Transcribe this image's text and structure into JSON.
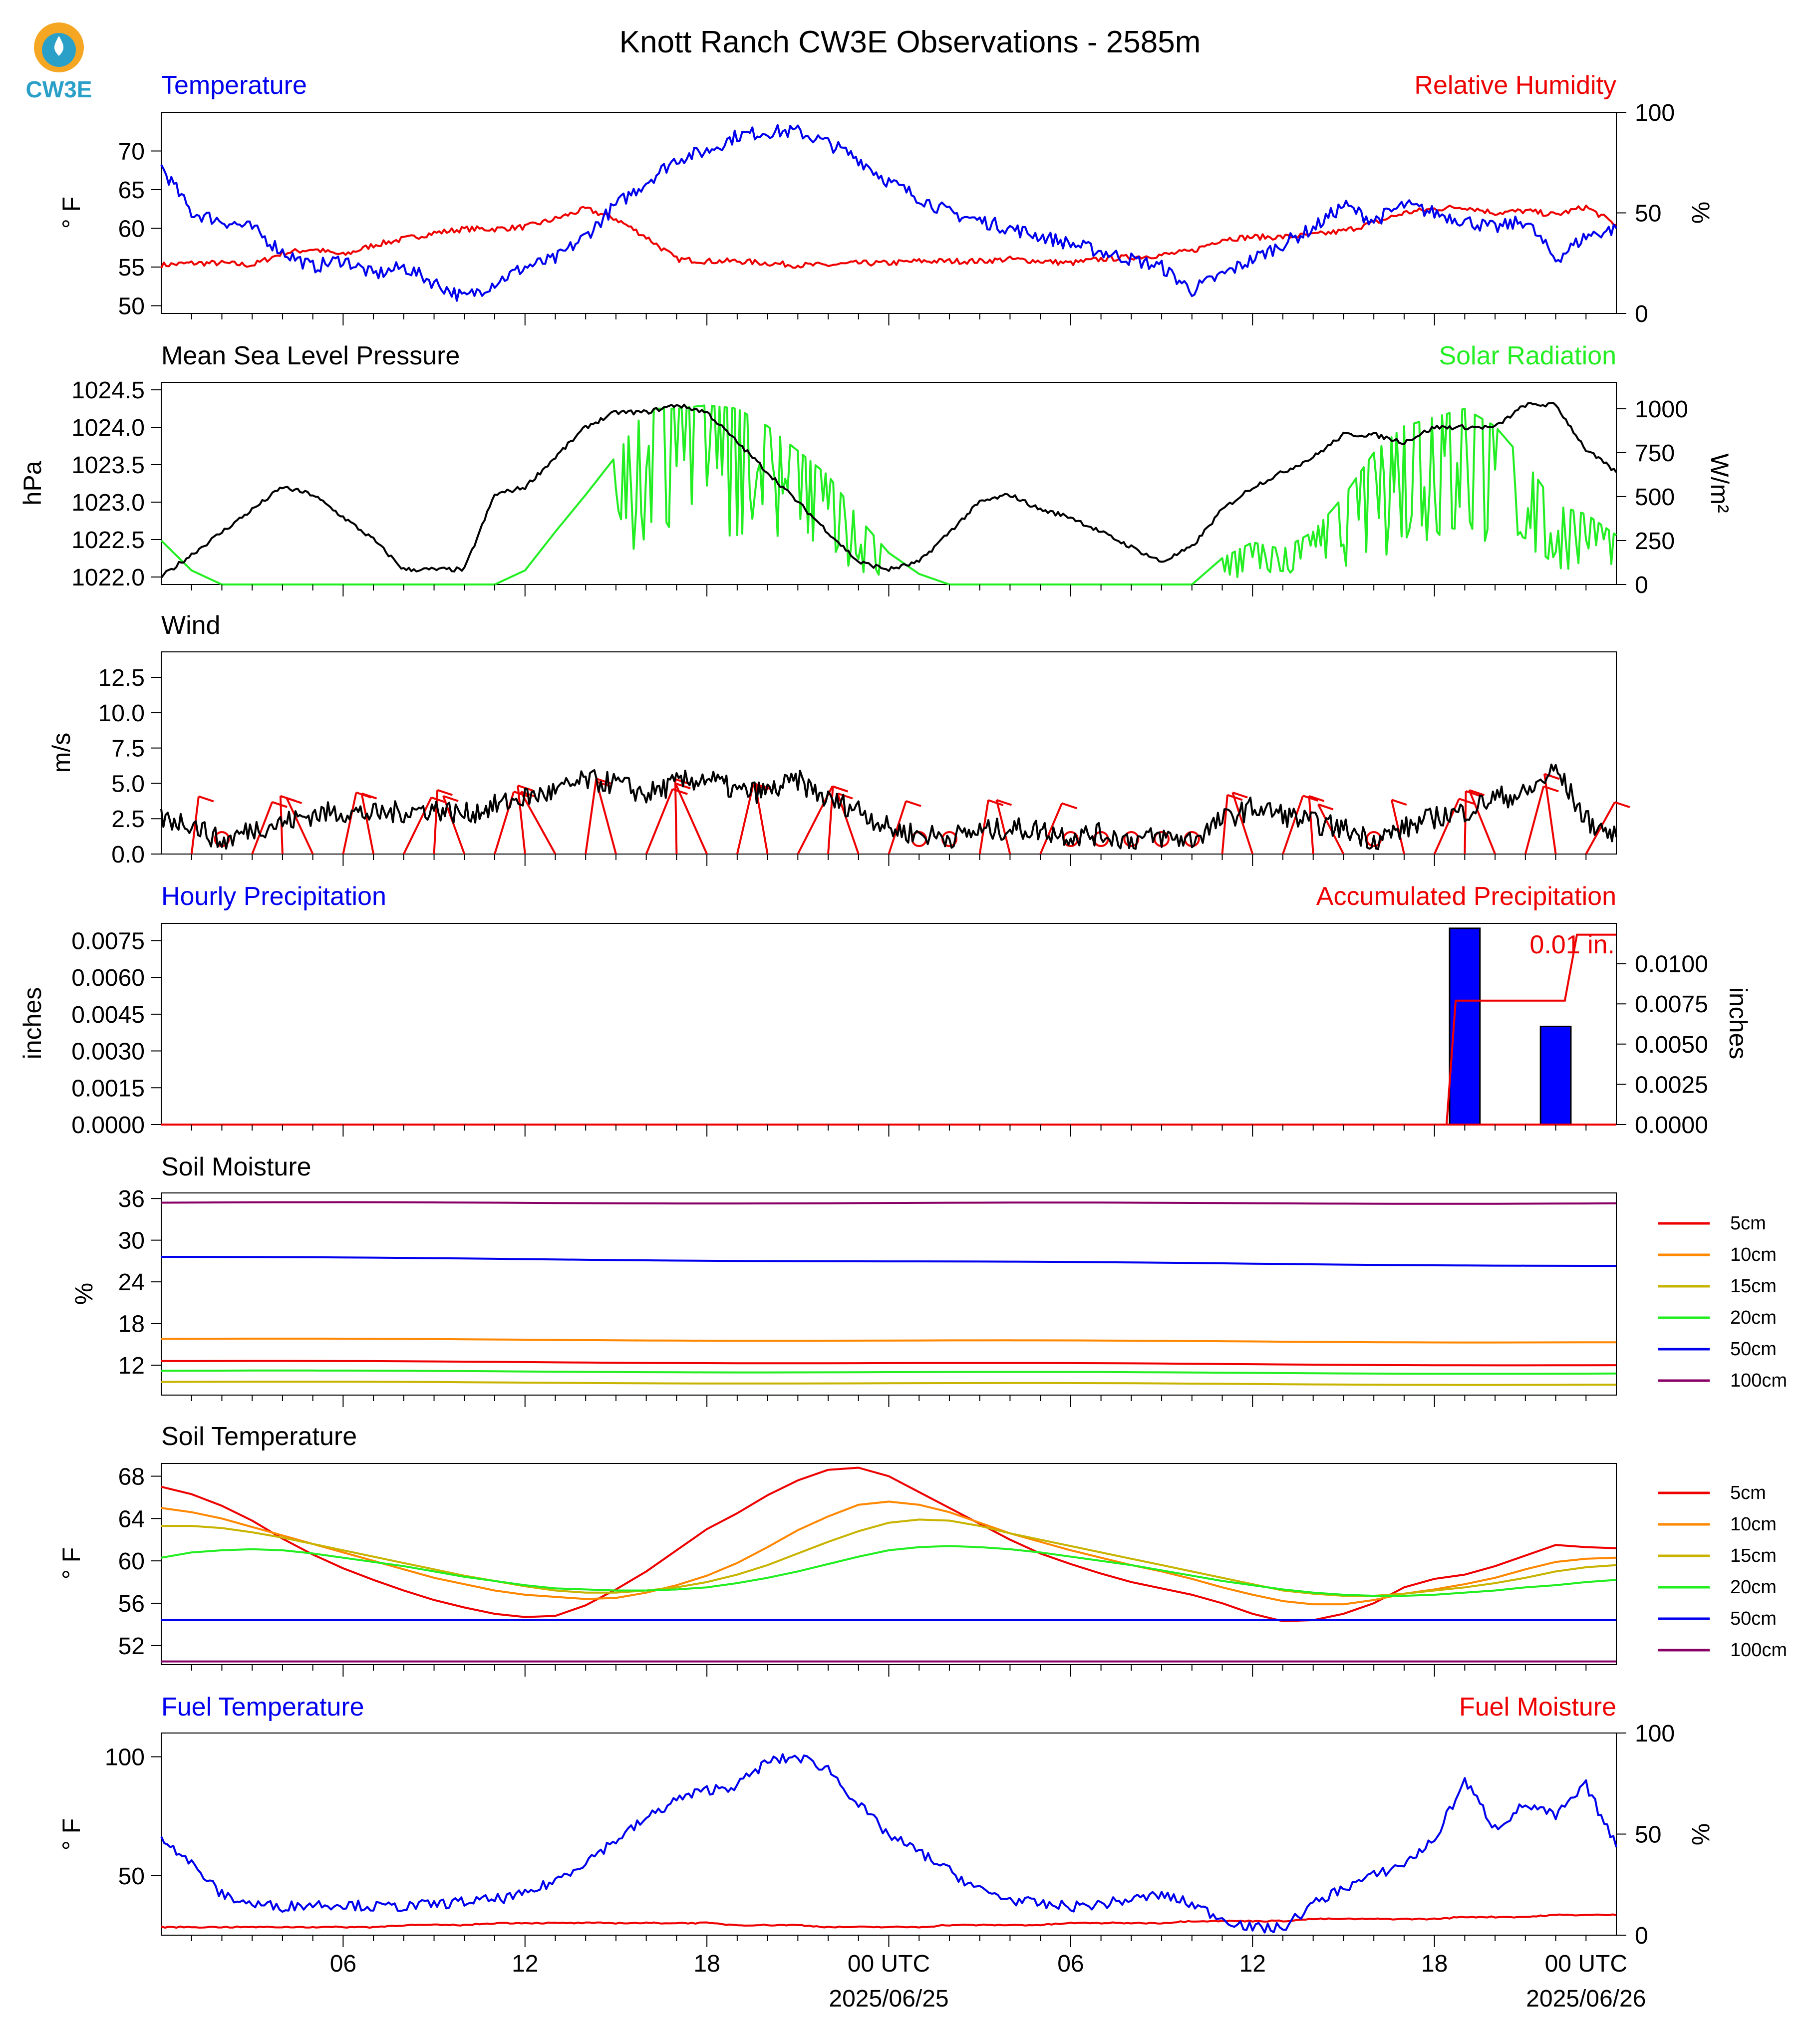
{
  "title": "Knott Ranch CW3E Observations - 2585m",
  "logo_text": "CW3E",
  "colors": {
    "blue": "#0000ee",
    "red": "#ee0000",
    "green": "#22ee22",
    "black": "#000000",
    "orange": "#ff8800",
    "olive": "#c8b400",
    "purple": "#880066",
    "fill_blue": "#0000ff"
  },
  "x_axis": {
    "ticks": [
      "06",
      "12",
      "18",
      "00 UTC",
      "06",
      "12",
      "18",
      "00 UTC"
    ],
    "dates": [
      "2025/06/25",
      "2025/06/26"
    ]
  },
  "panels": {
    "temperature": {
      "left_title": "Temperature",
      "right_title": "Relative Humidity",
      "ylabel_left": "° F",
      "ylabel_right": "%",
      "yticks_left": [
        "50",
        "55",
        "60",
        "65",
        "70"
      ],
      "yticks_right": [
        "0",
        "50",
        "100"
      ]
    },
    "pressure": {
      "left_title": "Mean Sea Level Pressure",
      "right_title": "Solar Radiation",
      "ylabel_left": "hPa",
      "ylabel_right": "W/m²",
      "yticks_left": [
        "1022.0",
        "1022.5",
        "1023.0",
        "1023.5",
        "1024.0",
        "1024.5"
      ],
      "yticks_right": [
        "0",
        "250",
        "500",
        "750",
        "1000"
      ]
    },
    "wind": {
      "left_title": "Wind",
      "ylabel_left": "m/s",
      "yticks_left": [
        "0.0",
        "2.5",
        "5.0",
        "7.5",
        "10.0",
        "12.5"
      ]
    },
    "precip": {
      "left_title": "Hourly Precipitation",
      "right_title": "Accumulated Precipitation",
      "ylabel_left": "inches",
      "ylabel_right": "inches",
      "yticks_left": [
        "0.0000",
        "0.0015",
        "0.0030",
        "0.0045",
        "0.0060",
        "0.0075"
      ],
      "yticks_right": [
        "0.0000",
        "0.0025",
        "0.0050",
        "0.0075",
        "0.0100"
      ],
      "annotation": "0.01 in."
    },
    "soil_moisture": {
      "left_title": "Soil Moisture",
      "ylabel_left": "%",
      "yticks_left": [
        "12",
        "18",
        "24",
        "30",
        "36"
      ],
      "legend": [
        "5cm",
        "10cm",
        "15cm",
        "20cm",
        "50cm",
        "100cm"
      ]
    },
    "soil_temp": {
      "left_title": "Soil Temperature",
      "ylabel_left": "° F",
      "yticks_left": [
        "52",
        "56",
        "60",
        "64",
        "68"
      ],
      "legend": [
        "5cm",
        "10cm",
        "15cm",
        "20cm",
        "50cm",
        "100cm"
      ]
    },
    "fuel": {
      "left_title": "Fuel Temperature",
      "right_title": "Fuel Moisture",
      "ylabel_left": "° F",
      "ylabel_right": "%",
      "yticks_left": [
        "50",
        "100"
      ],
      "yticks_right": [
        "0",
        "50",
        "100"
      ]
    }
  },
  "chart_data": [
    {
      "type": "line",
      "title": "Temperature",
      "x_hours": [
        0,
        1,
        2,
        3,
        4,
        5,
        6,
        7,
        8,
        9,
        10,
        11,
        12,
        13,
        14,
        15,
        16,
        17,
        18,
        19,
        20,
        21,
        22,
        23,
        24,
        25,
        26,
        27,
        28,
        29,
        30,
        31,
        32,
        33,
        34,
        35,
        36,
        37,
        38,
        39,
        40,
        41,
        42,
        43,
        44,
        45,
        46,
        47,
        48
      ],
      "ylim": [
        49,
        75
      ],
      "right_ylim": [
        0,
        100
      ],
      "series": [
        {
          "name": "Temperature",
          "axis": "left",
          "values": [
            68,
            62,
            61,
            60,
            57,
            55,
            56,
            54,
            55,
            53,
            51,
            53,
            55,
            56,
            59,
            63,
            66,
            69,
            70,
            72,
            72.5,
            72.5,
            71,
            69,
            66,
            64,
            62,
            61,
            60,
            59,
            58,
            57,
            56,
            55,
            52,
            54,
            56,
            58,
            60,
            63,
            61,
            63,
            62,
            61,
            60,
            61,
            56,
            59,
            60
          ]
        },
        {
          "name": "Relative Humidity",
          "axis": "right",
          "values": [
            24,
            25,
            25,
            24,
            30,
            32,
            29,
            34,
            37,
            40,
            42,
            42,
            43,
            47,
            52,
            47,
            38,
            27,
            26,
            26,
            25,
            24,
            24,
            25,
            25,
            26,
            26,
            26,
            27,
            26,
            25,
            27,
            28,
            29,
            31,
            37,
            38,
            38,
            39,
            41,
            45,
            50,
            52,
            53,
            50,
            51,
            49,
            53,
            44
          ]
        }
      ]
    },
    {
      "type": "line",
      "title": "Mean Sea Level Pressure",
      "ylim": [
        1021.9,
        1024.6
      ],
      "right_ylim": [
        0,
        1150
      ],
      "series": [
        {
          "name": "Mean Sea Level Pressure",
          "axis": "left",
          "values": [
            1022.0,
            1022.3,
            1022.6,
            1022.9,
            1023.2,
            1023.1,
            1022.8,
            1022.5,
            1022.1,
            1022.1,
            1022.1,
            1023.1,
            1023.2,
            1023.6,
            1024.0,
            1024.2,
            1024.2,
            1024.3,
            1024.2,
            1023.8,
            1023.4,
            1023.0,
            1022.6,
            1022.2,
            1022.1,
            1022.2,
            1022.6,
            1023.0,
            1023.1,
            1022.9,
            1022.8,
            1022.6,
            1022.4,
            1022.2,
            1022.4,
            1022.9,
            1023.2,
            1023.4,
            1023.6,
            1023.9,
            1023.9,
            1023.8,
            1024.0,
            1024.0,
            1024.0,
            1024.3,
            1024.3,
            1023.7,
            1023.4
          ]
        },
        {
          "name": "Solar Radiation",
          "axis": "right",
          "values": [
            250,
            80,
            0,
            0,
            0,
            0,
            0,
            0,
            0,
            0,
            0,
            0,
            80,
            300,
            510,
            730,
            1000,
            1000,
            1020,
            1000,
            900,
            760,
            620,
            380,
            180,
            60,
            0,
            0,
            0,
            0,
            0,
            0,
            0,
            0,
            0,
            150,
            240,
            200,
            300,
            500,
            750,
            900,
            950,
            1000,
            900,
            700,
            450,
            400,
            280
          ]
        }
      ]
    },
    {
      "type": "line",
      "title": "Wind",
      "ylim": [
        0,
        14.3
      ],
      "series": [
        {
          "name": "Wind",
          "values": [
            2.5,
            2.2,
            0.8,
            1.8,
            2.2,
            2.8,
            3.0,
            2.8,
            3.0,
            3.2,
            2.8,
            3.4,
            4.0,
            4.4,
            5.2,
            5.0,
            4.2,
            5.0,
            5.4,
            4.4,
            4.4,
            5.2,
            3.8,
            3.2,
            1.8,
            1.4,
            1.2,
            1.6,
            1.8,
            1.7,
            1.3,
            1.4,
            1.0,
            1.2,
            1.0,
            2.4,
            3.3,
            2.8,
            2.2,
            1.8,
            1.0,
            1.8,
            2.6,
            3.0,
            4.0,
            4.2,
            6.0,
            2.4,
            1.2
          ]
        }
      ]
    },
    {
      "type": "bar",
      "title": "Hourly Precipitation",
      "ylim": [
        0,
        0.0082
      ],
      "right_ylim": [
        0,
        0.0125
      ],
      "series": [
        {
          "name": "Hourly Precipitation",
          "axis": "left",
          "bars": [
            {
              "hour": 43,
              "value": 0.008
            },
            {
              "hour": 46,
              "value": 0.004
            }
          ]
        },
        {
          "name": "Accumulated Precipitation",
          "axis": "right",
          "steps": [
            [
              0,
              0
            ],
            [
              42.4,
              0
            ],
            [
              42.7,
              0.0077
            ],
            [
              46.3,
              0.0077
            ],
            [
              46.7,
              0.0118
            ],
            [
              48,
              0.0118
            ]
          ]
        }
      ]
    },
    {
      "type": "line",
      "title": "Soil Moisture",
      "ylim": [
        7.7,
        36.8
      ],
      "series": [
        {
          "name": "5cm",
          "values_start_end": [
            12.6,
            12.0
          ]
        },
        {
          "name": "10cm",
          "values_start_end": [
            15.8,
            15.3
          ]
        },
        {
          "name": "15cm",
          "values_start_end": [
            9.6,
            9.2
          ]
        },
        {
          "name": "20cm",
          "values_start_end": [
            11.2,
            10.8
          ]
        },
        {
          "name": "50cm",
          "values_start_end": [
            27.6,
            26.3
          ]
        },
        {
          "name": "100cm",
          "values_start_end": [
            35.4,
            35.3
          ]
        }
      ]
    },
    {
      "type": "line",
      "title": "Soil Temperature",
      "ylim": [
        50.2,
        69.2
      ],
      "series": [
        {
          "name": "5cm",
          "values": [
            67.0,
            66.3,
            65.2,
            63.8,
            62.1,
            60.6,
            59.3,
            58.2,
            57.2,
            56.3,
            55.6,
            55.0,
            54.7,
            54.8,
            55.8,
            57.3,
            59.0,
            61.0,
            63.0,
            64.5,
            66.2,
            67.6,
            68.6,
            68.8,
            68.0,
            66.5,
            65.0,
            63.5,
            62.0,
            60.7,
            59.7,
            58.8,
            58.0,
            57.4,
            56.8,
            56.0,
            55.0,
            54.3,
            54.4,
            55.0,
            56.0,
            57.5,
            58.3,
            58.7,
            59.5,
            60.5,
            61.5,
            61.3,
            61.2
          ]
        },
        {
          "name": "10cm",
          "values": [
            65.0,
            64.6,
            64.0,
            63.2,
            62.4,
            61.6,
            60.8,
            60.0,
            59.2,
            58.4,
            57.8,
            57.2,
            56.8,
            56.6,
            56.4,
            56.5,
            57.0,
            57.7,
            58.6,
            59.8,
            61.3,
            62.9,
            64.2,
            65.3,
            65.6,
            65.3,
            64.6,
            63.6,
            62.6,
            61.8,
            61.0,
            60.3,
            59.6,
            59.0,
            58.3,
            57.5,
            56.8,
            56.2,
            55.9,
            55.9,
            56.3,
            56.9,
            57.3,
            57.8,
            58.4,
            59.2,
            59.9,
            60.2,
            60.3
          ]
        },
        {
          "name": "15cm",
          "values": [
            63.3,
            63.3,
            63.1,
            62.7,
            62.2,
            61.6,
            61.0,
            60.4,
            59.8,
            59.2,
            58.6,
            58.1,
            57.6,
            57.2,
            57.0,
            57.0,
            57.2,
            57.5,
            58.0,
            58.7,
            59.6,
            60.7,
            61.8,
            62.8,
            63.6,
            63.9,
            63.8,
            63.3,
            62.6,
            62.0,
            61.4,
            60.8,
            60.2,
            59.6,
            59.0,
            58.4,
            57.8,
            57.2,
            56.9,
            56.7,
            56.7,
            56.9,
            57.2,
            57.5,
            57.9,
            58.4,
            59.0,
            59.4,
            59.6
          ]
        },
        {
          "name": "20cm",
          "values": [
            60.3,
            60.8,
            61.0,
            61.1,
            61.0,
            60.7,
            60.3,
            59.9,
            59.5,
            59.0,
            58.5,
            58.1,
            57.7,
            57.4,
            57.3,
            57.2,
            57.2,
            57.3,
            57.5,
            57.9,
            58.4,
            59.0,
            59.7,
            60.4,
            61.0,
            61.3,
            61.4,
            61.3,
            61.1,
            60.8,
            60.4,
            60.0,
            59.6,
            59.1,
            58.6,
            58.1,
            57.7,
            57.3,
            57.0,
            56.8,
            56.7,
            56.7,
            56.8,
            57.0,
            57.2,
            57.5,
            57.7,
            58.0,
            58.2
          ]
        },
        {
          "name": "50cm",
          "values_start_end": [
            54.4,
            54.4
          ]
        },
        {
          "name": "100cm",
          "values_start_end": [
            50.5,
            50.5
          ]
        }
      ]
    },
    {
      "type": "line",
      "title": "Fuel Temperature",
      "ylim": [
        25,
        110
      ],
      "right_ylim": [
        0,
        100
      ],
      "series": [
        {
          "name": "Fuel Temperature",
          "axis": "left",
          "values": [
            67,
            55,
            42,
            38,
            37,
            38,
            38,
            37,
            37,
            38,
            39,
            40,
            42,
            48,
            56,
            65,
            74,
            82,
            86,
            88,
            98,
            100,
            95,
            80,
            67,
            60,
            52,
            44,
            40,
            38,
            37,
            38,
            40,
            42,
            38,
            32,
            28,
            28,
            38,
            45,
            50,
            55,
            65,
            90,
            70,
            80,
            75,
            88,
            62
          ]
        },
        {
          "name": "Fuel Moisture",
          "axis": "right",
          "values": [
            4,
            4,
            4,
            4,
            4,
            4,
            4,
            4,
            5,
            5,
            5,
            6,
            6,
            6,
            6,
            6,
            6,
            6,
            6,
            5,
            5,
            5,
            4,
            4,
            4,
            4,
            5,
            5,
            5,
            5,
            6,
            6,
            6,
            6,
            7,
            7,
            7,
            7,
            8,
            8,
            8,
            8,
            8,
            9,
            9,
            9,
            10,
            10,
            10
          ]
        }
      ]
    }
  ]
}
